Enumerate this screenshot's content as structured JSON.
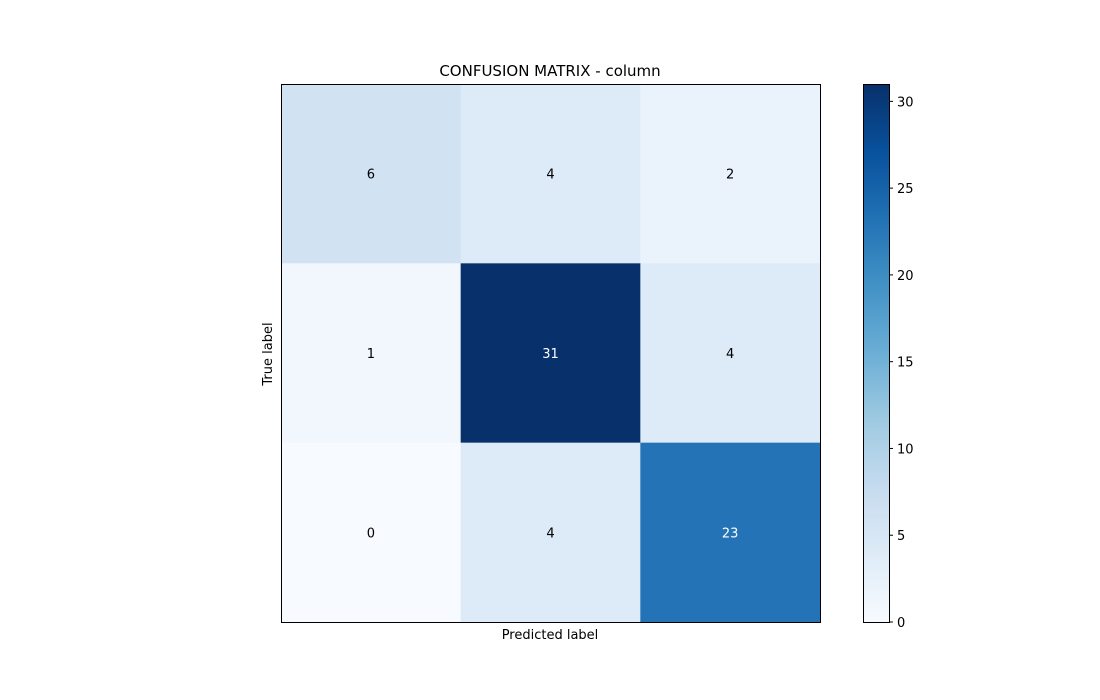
{
  "chart_data": {
    "type": "heatmap",
    "title": "CONFUSION MATRIX - column",
    "xlabel": "Predicted label",
    "ylabel": "True label",
    "matrix": [
      [
        6,
        4,
        2
      ],
      [
        1,
        31,
        4
      ],
      [
        0,
        4,
        23
      ]
    ],
    "colorbar": {
      "min": 0,
      "max": 31,
      "ticks": [
        0,
        5,
        10,
        15,
        20,
        25,
        30
      ],
      "tick_labels": [
        "0",
        "5",
        "10",
        "15",
        "20",
        "25",
        "30"
      ],
      "colormap": "Blues",
      "color_stops": [
        "#f7fbff",
        "#deebf7",
        "#c6dbef",
        "#9ecae1",
        "#6baed6",
        "#4292c6",
        "#2171b5",
        "#08519c",
        "#08306b"
      ]
    },
    "axis_ticks_visible": false,
    "grid": false,
    "text_color_dark": "#000000",
    "text_color_light": "#ffffff"
  }
}
